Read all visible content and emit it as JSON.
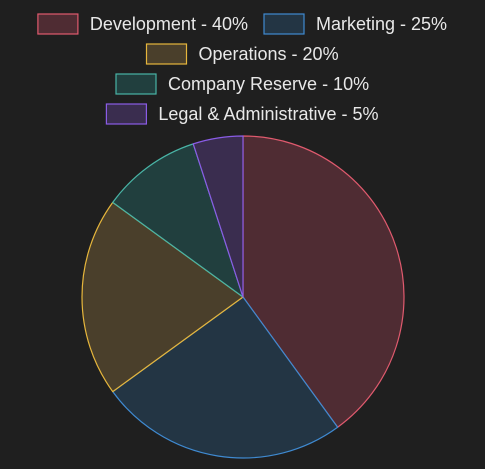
{
  "chart_data": {
    "type": "pie",
    "title": "",
    "legend_position": "top",
    "slices": [
      {
        "label": "Development",
        "value": 40,
        "legend": "Development - 40%",
        "stroke": "#e05a6e",
        "fill": "#4f2c33"
      },
      {
        "label": "Marketing",
        "value": 25,
        "legend": "Marketing - 25%",
        "stroke": "#3f8ad1",
        "fill": "#233544"
      },
      {
        "label": "Operations",
        "value": 20,
        "legend": "Operations - 20%",
        "stroke": "#e6b63c",
        "fill": "#4a3f2b"
      },
      {
        "label": "Company Reserve",
        "value": 10,
        "legend": "Company Reserve - 10%",
        "stroke": "#49b4a6",
        "fill": "#213f3e"
      },
      {
        "label": "Legal & Administrative",
        "value": 5,
        "legend": "Legal & Administrative - 5%",
        "stroke": "#8a5ce6",
        "fill": "#3a2d4f"
      }
    ]
  }
}
